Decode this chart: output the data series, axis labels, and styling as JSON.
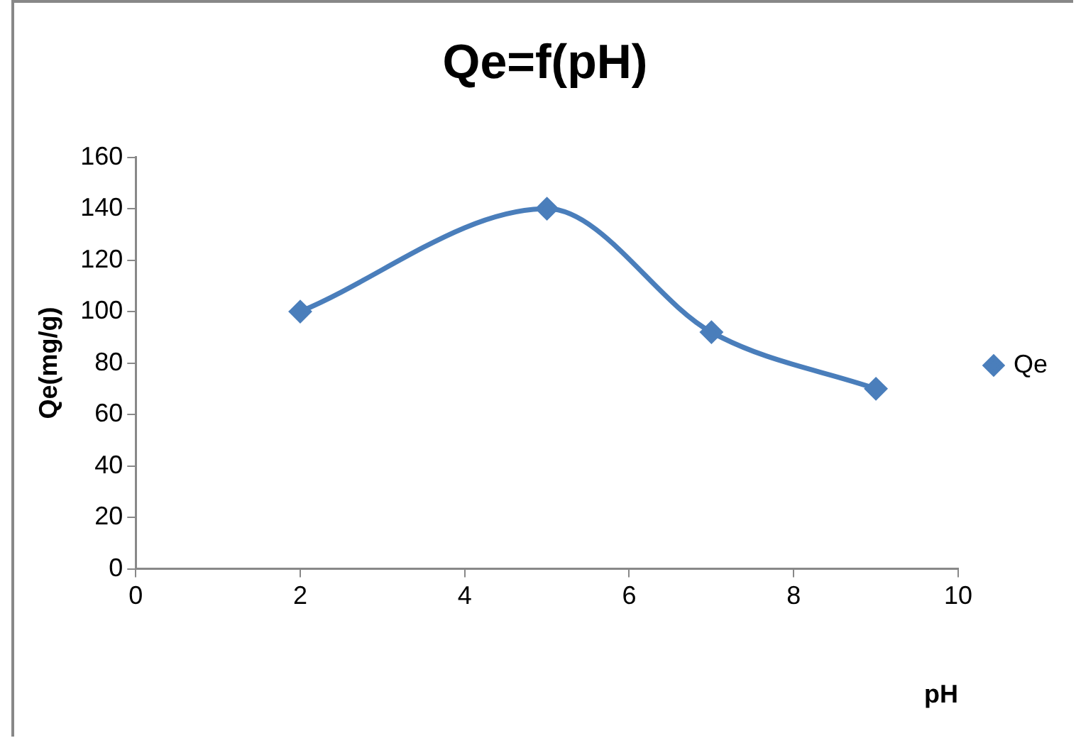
{
  "chart_data": {
    "type": "line",
    "title": "Qe=f(pH)",
    "xlabel": "pH",
    "ylabel": "Qe(mg/g)",
    "x": [
      2,
      5,
      7,
      9
    ],
    "series": [
      {
        "name": "Qe",
        "color": "#4a7ebb",
        "values": [
          100,
          140,
          92,
          70
        ]
      }
    ],
    "xlim": [
      0,
      10
    ],
    "xticks": [
      0,
      2,
      4,
      6,
      8,
      10
    ],
    "ylim": [
      0,
      160
    ],
    "yticks": [
      0,
      20,
      40,
      60,
      80,
      100,
      120,
      140,
      160
    ],
    "grid": false,
    "legend": "right",
    "marker": "diamond",
    "line_style": "solid"
  }
}
